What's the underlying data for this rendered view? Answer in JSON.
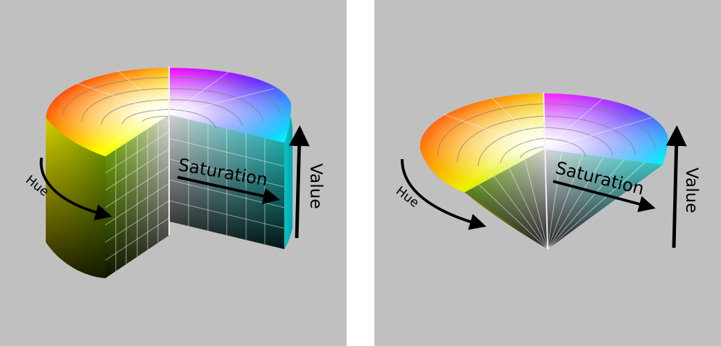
{
  "figures": [
    {
      "shape": "cylinder",
      "labels": {
        "hue": "Hue",
        "saturation": "Saturation",
        "value": "Value"
      }
    },
    {
      "shape": "cone",
      "labels": {
        "hue": "Hue",
        "saturation": "Saturation",
        "value": "Value"
      }
    }
  ],
  "colors": {
    "background": "#c0c0c0",
    "gap": "#ffffff",
    "label": "#000000"
  }
}
